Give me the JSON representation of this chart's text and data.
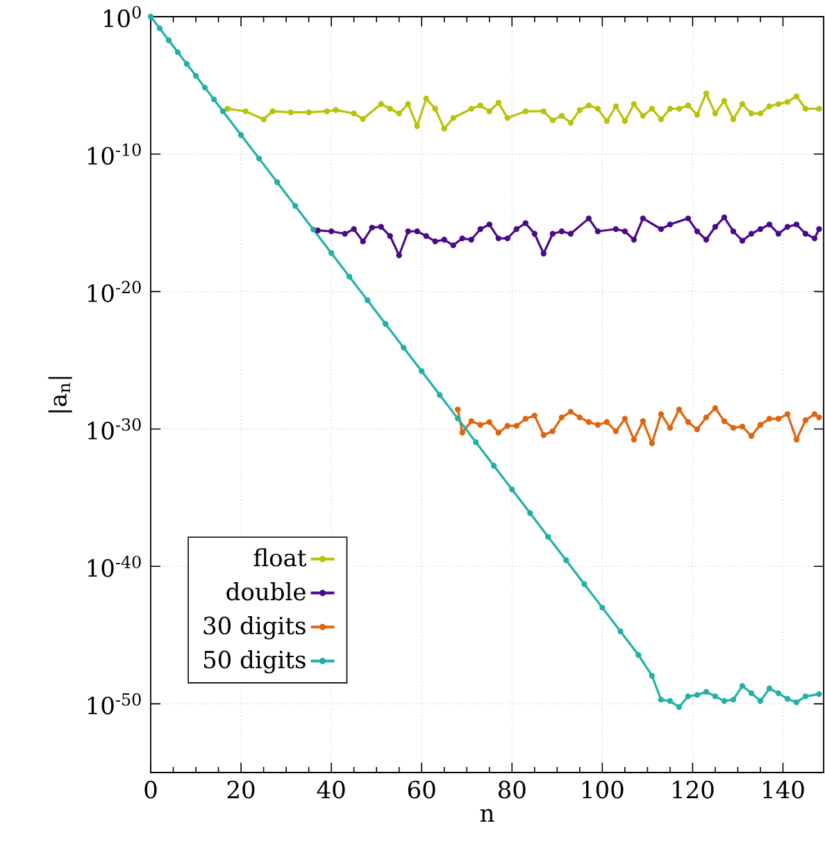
{
  "chart_data": {
    "type": "line",
    "xlabel": "n",
    "ylabel": "|a$_{n}$|",
    "log": "y",
    "grid": true,
    "legend": "bottom left",
    "marker": "circle",
    "line_style": "solid",
    "xlim": [
      0,
      149
    ],
    "ylim": [
      1e-55,
      1
    ],
    "xticks": [
      0,
      20,
      40,
      60,
      80,
      100,
      120,
      140
    ],
    "yticks": [
      {
        "value": 1,
        "label": "10$^{0}$"
      },
      {
        "value": 1e-10,
        "label": "10$^{-10}$"
      },
      {
        "value": 1e-20,
        "label": "10$^{-20}$"
      },
      {
        "value": 1e-30,
        "label": "10$^{-30}$"
      },
      {
        "value": 1e-40,
        "label": "10$^{-40}$"
      },
      {
        "value": 1e-50,
        "label": "10$^{-50}$"
      }
    ],
    "series": [
      {
        "name": "float",
        "color": "#b8c208",
        "x": [
          17,
          21,
          25,
          27,
          31,
          35,
          39,
          41,
          45,
          47,
          51,
          53,
          55,
          57,
          59,
          61,
          63,
          65,
          67,
          71,
          73,
          75,
          77,
          79,
          83,
          87,
          89,
          91,
          93,
          95,
          97,
          99,
          101,
          103,
          105,
          107,
          109,
          111,
          113,
          115,
          117,
          119,
          121,
          123,
          125,
          127,
          129,
          131,
          133,
          135,
          137,
          139,
          141,
          143,
          145,
          148
        ],
        "values": [
          2e-07,
          1.3e-07,
          3.4e-08,
          1.3e-07,
          1.1e-07,
          1.1e-07,
          1.3e-07,
          1.6e-07,
          9.1e-08,
          3.6e-08,
          4.4e-07,
          2e-07,
          9.1e-08,
          4.4e-07,
          1.1e-08,
          1.1e-06,
          2e-07,
          7.1e-09,
          4.3e-08,
          2e-07,
          3.5e-07,
          1.3e-07,
          5.5e-07,
          4.3e-08,
          1.3e-07,
          1.3e-07,
          2.9e-08,
          6.2e-08,
          1.9e-08,
          1.6e-07,
          3.5e-07,
          2e-07,
          2.5e-08,
          3e-07,
          2.5e-08,
          4.4e-07,
          6.2e-08,
          2e-07,
          3.4e-08,
          2e-07,
          2e-07,
          3.5e-07,
          7.2e-08,
          2.6e-06,
          9.1e-08,
          7.4e-07,
          3.4e-08,
          4.4e-07,
          9.1e-08,
          9.1e-08,
          3e-07,
          4.4e-07,
          6.3e-07,
          1.6e-06,
          2e-07,
          2e-07
        ]
      },
      {
        "name": "double",
        "color": "#4b0a8a",
        "x": [
          37,
          40,
          43,
          45,
          47,
          49,
          51,
          53,
          55,
          57,
          59,
          61,
          63,
          65,
          67,
          69,
          71,
          73,
          75,
          77,
          79,
          81,
          83,
          85,
          87,
          89,
          91,
          93,
          97,
          99,
          103,
          105,
          107,
          109,
          113,
          115,
          119,
          121,
          123,
          125,
          127,
          129,
          131,
          133,
          135,
          137,
          139,
          141,
          143,
          145,
          147,
          148
        ],
        "values": [
          2.8e-16,
          2.4e-16,
          1.6e-16,
          3.5e-16,
          4.4e-17,
          4.5e-16,
          5.1e-16,
          1.1e-16,
          4.3e-18,
          2.4e-16,
          2.4e-16,
          1.1e-16,
          4.4e-17,
          5.9e-17,
          2.3e-17,
          7.4e-17,
          5.9e-17,
          3.5e-16,
          7.6e-16,
          7.4e-17,
          7.4e-17,
          3.5e-16,
          9.5e-16,
          1.6e-16,
          5.8e-18,
          1.6e-16,
          2.4e-16,
          1.6e-16,
          2.1e-15,
          2.4e-16,
          3.5e-16,
          2.4e-16,
          5.9e-17,
          2.1e-15,
          3.5e-16,
          7.6e-16,
          2.1e-15,
          2.4e-16,
          5.9e-17,
          5.1e-16,
          2.5e-15,
          2.4e-16,
          5e-17,
          1.6e-16,
          3.5e-16,
          7.6e-16,
          1.6e-16,
          5.1e-16,
          7.6e-16,
          1.6e-16,
          7.4e-17,
          3.5e-16
        ]
      },
      {
        "name": "30 digits",
        "color": "#e0640c",
        "x": [
          68,
          69,
          71,
          73,
          75,
          77,
          79,
          81,
          83,
          85,
          87,
          89,
          91,
          93,
          95,
          97,
          99,
          101,
          103,
          105,
          107,
          109,
          111,
          113,
          115,
          117,
          119,
          121,
          123,
          125,
          127,
          129,
          131,
          133,
          135,
          137,
          139,
          141,
          143,
          145,
          147,
          148
        ],
        "values": [
          2.6e-29,
          5.4e-31,
          3.7e-30,
          2e-30,
          3.2e-30,
          5.4e-31,
          1.7e-30,
          1.7e-30,
          5.5e-30,
          9.5e-30,
          3.6e-31,
          6.8e-31,
          6.9e-30,
          1.8e-29,
          6.9e-30,
          3.2e-30,
          2e-30,
          3.2e-30,
          6.8e-31,
          5.5e-30,
          1.7e-31,
          3.7e-30,
          9.1e-32,
          1.2e-29,
          1.2e-30,
          2.6e-29,
          3.2e-30,
          9.3e-31,
          6.9e-30,
          3.3e-29,
          3.7e-30,
          1.2e-30,
          1.5e-30,
          3.1e-31,
          2e-30,
          5.5e-30,
          5.5e-30,
          1.2e-29,
          1.7e-31,
          4.4e-30,
          1.2e-29,
          6.9e-30
        ]
      },
      {
        "name": "50 digits",
        "color": "#22b0a6",
        "x": [
          0,
          2,
          4,
          6,
          8,
          10,
          12,
          14,
          16,
          20,
          24,
          28,
          32,
          36,
          40,
          44,
          48,
          52,
          56,
          60,
          64,
          68,
          72,
          76,
          80,
          84,
          88,
          92,
          96,
          100,
          104,
          108,
          111,
          113,
          115,
          117,
          119,
          121,
          123,
          125,
          127,
          129,
          131,
          133,
          135,
          137,
          139,
          141,
          143,
          145,
          148
        ],
        "values": [
          1,
          0.14,
          0.019,
          0.0026,
          0.00036,
          5e-05,
          6.9e-06,
          9.5e-07,
          1.3e-07,
          2.5e-09,
          4.8e-11,
          9.1e-13,
          1.7e-14,
          3.3e-16,
          6.3e-18,
          1.2e-19,
          2.3e-21,
          4.4e-23,
          8.3e-25,
          1.6e-26,
          3e-28,
          5.8e-30,
          1.1e-31,
          2.1e-33,
          4e-35,
          7.6e-37,
          1.4e-38,
          2.8e-40,
          5.2e-42,
          1e-43,
          1.9e-45,
          3.6e-47,
          1.1e-48,
          2e-50,
          1.6e-50,
          5.8e-51,
          3.5e-50,
          4.4e-50,
          7.4e-50,
          3.5e-50,
          1.6e-50,
          2e-50,
          2e-49,
          5.9e-50,
          1.6e-50,
          1.3e-49,
          5.9e-50,
          2.3e-50,
          1.3e-50,
          3.5e-50,
          5.1e-50
        ]
      }
    ]
  }
}
